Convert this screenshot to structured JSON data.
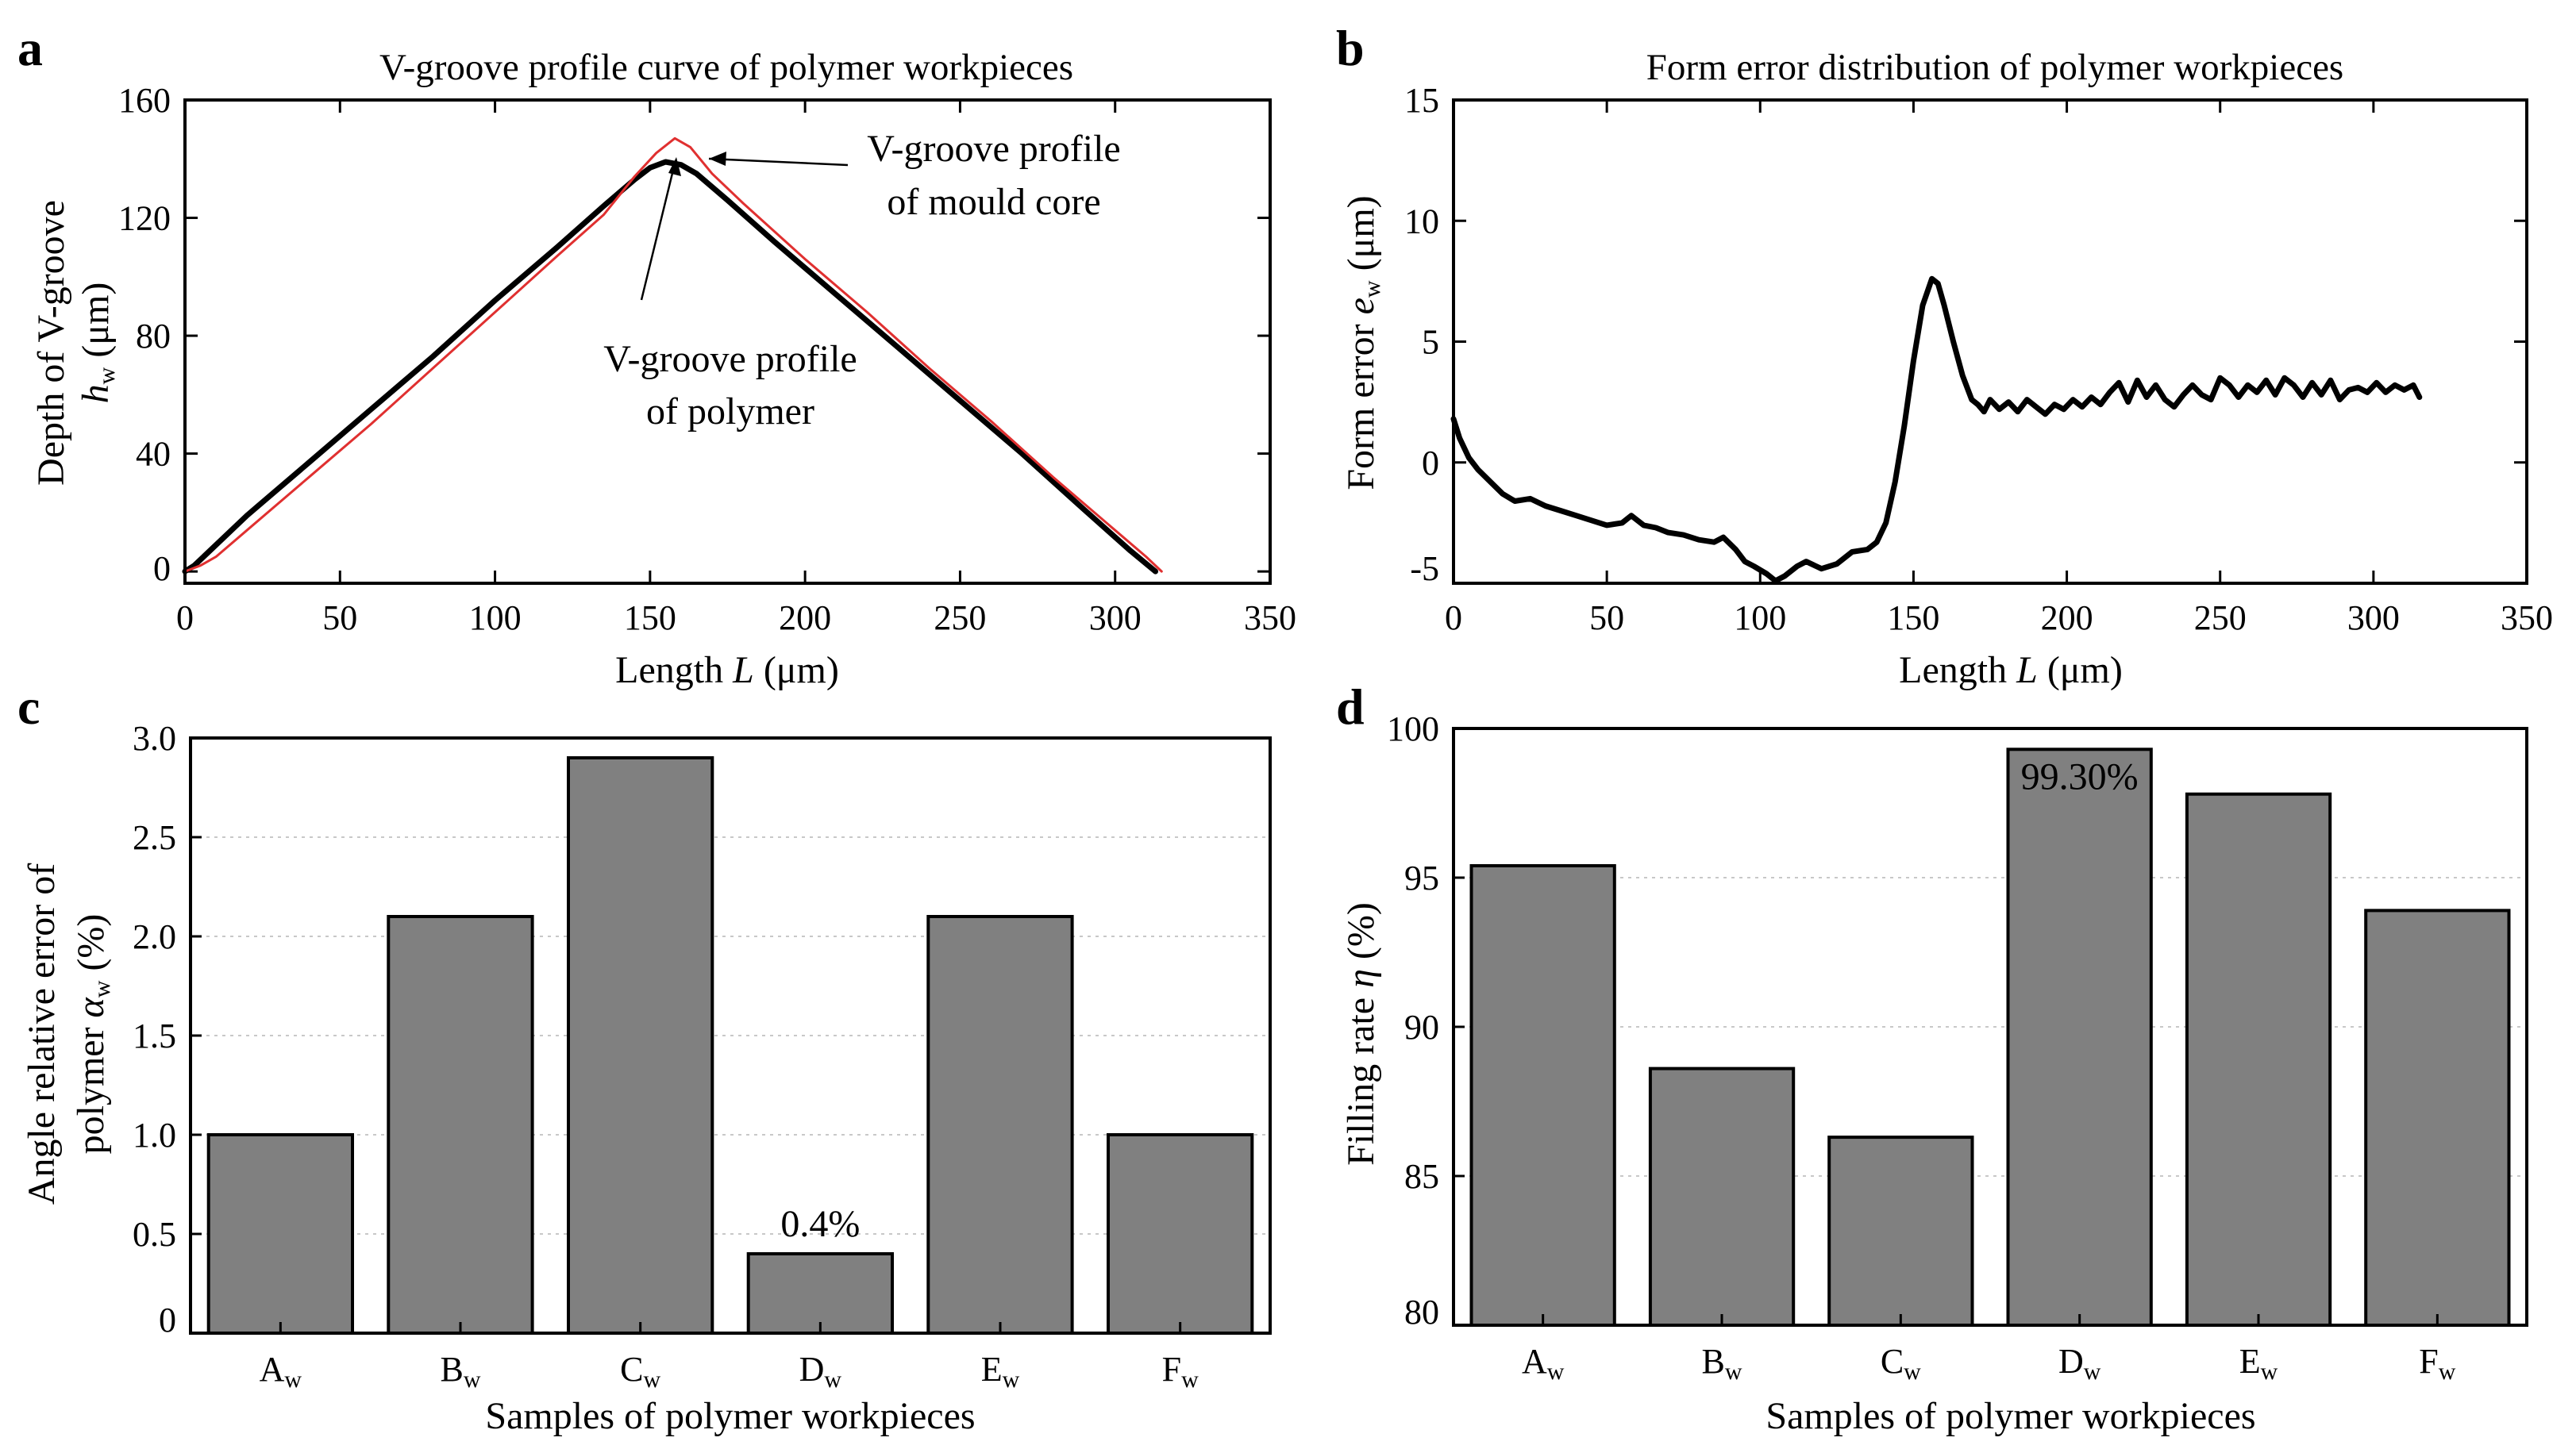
{
  "chart_data": [
    {
      "panel": "a",
      "type": "line",
      "title": "V-groove profile curve of polymer workpieces",
      "xlabel_main": "Length ",
      "xlabel_var": "L",
      "xlabel_unit": " (μm)",
      "ylabel_line1": "Depth of V-groove",
      "ylabel_var": "h",
      "ylabel_sub": "w",
      "ylabel_unit": " (μm)",
      "xlim": [
        0,
        350
      ],
      "ylim": [
        -4,
        160
      ],
      "xticks": [
        "0",
        "50",
        "100",
        "150",
        "200",
        "250",
        "300",
        "350"
      ],
      "yticks": [
        "0",
        "40",
        "80",
        "120",
        "160"
      ],
      "annotations": {
        "mould_line1": "V-groove profile",
        "mould_line2": "of mould core",
        "polymer_line1": "V-groove profile",
        "polymer_line2": "of polymer"
      },
      "series": [
        {
          "name": "V-groove profile of polymer",
          "color": "#000000",
          "x": [
            0,
            3,
            10,
            20,
            40,
            60,
            80,
            100,
            120,
            135,
            145,
            150,
            155,
            160,
            165,
            175,
            190,
            210,
            230,
            250,
            270,
            290,
            305,
            313
          ],
          "y": [
            0,
            2,
            9,
            19,
            37,
            55,
            73,
            92,
            110,
            124,
            133,
            137,
            139,
            138,
            135,
            126,
            112,
            94,
            76,
            58,
            40,
            21,
            7,
            0
          ]
        },
        {
          "name": "V-groove profile of mould core",
          "color": "#e03030",
          "x": [
            0,
            5,
            10,
            20,
            40,
            60,
            80,
            100,
            120,
            135,
            145,
            152,
            158,
            163,
            170,
            180,
            200,
            220,
            240,
            260,
            280,
            300,
            310,
            315
          ],
          "y": [
            0,
            2,
            5,
            14,
            32,
            50,
            69,
            88,
            107,
            121,
            134,
            142,
            147,
            144,
            135,
            125,
            106,
            88,
            69,
            51,
            32,
            14,
            5,
            0
          ]
        }
      ]
    },
    {
      "panel": "b",
      "type": "line",
      "title": "Form error distribution of polymer workpieces",
      "xlabel_main": "Length ",
      "xlabel_var": "L",
      "xlabel_unit": " (μm)",
      "ylabel_main": "Form error ",
      "ylabel_var": "e",
      "ylabel_sub": "w",
      "ylabel_unit": " (μm)",
      "xlim": [
        0,
        350
      ],
      "ylim": [
        -5,
        15
      ],
      "xticks": [
        "0",
        "50",
        "100",
        "150",
        "200",
        "250",
        "300",
        "350"
      ],
      "yticks": [
        "-5",
        "0",
        "5",
        "10",
        "15"
      ],
      "series": [
        {
          "name": "Form error",
          "color": "#000000",
          "x": [
            0,
            2,
            5,
            8,
            12,
            16,
            20,
            25,
            30,
            35,
            40,
            45,
            50,
            55,
            58,
            62,
            66,
            70,
            75,
            80,
            85,
            88,
            92,
            95,
            98,
            102,
            105,
            108,
            112,
            115,
            120,
            125,
            130,
            135,
            138,
            141,
            144,
            147,
            150,
            153,
            156,
            158,
            160,
            163,
            166,
            169,
            171,
            173,
            175,
            178,
            181,
            184,
            187,
            190,
            193,
            196,
            199,
            202,
            205,
            208,
            211,
            214,
            217,
            220,
            223,
            226,
            229,
            232,
            235,
            238,
            241,
            244,
            247,
            250,
            253,
            256,
            259,
            262,
            265,
            268,
            271,
            274,
            277,
            280,
            283,
            286,
            289,
            292,
            295,
            298,
            301,
            304,
            307,
            310,
            313,
            315
          ],
          "y": [
            1.8,
            1.0,
            0.2,
            -0.3,
            -0.8,
            -1.3,
            -1.6,
            -1.5,
            -1.8,
            -2.0,
            -2.2,
            -2.4,
            -2.6,
            -2.5,
            -2.2,
            -2.6,
            -2.7,
            -2.9,
            -3.0,
            -3.2,
            -3.3,
            -3.1,
            -3.6,
            -4.1,
            -4.3,
            -4.6,
            -4.9,
            -4.7,
            -4.3,
            -4.1,
            -4.4,
            -4.2,
            -3.7,
            -3.6,
            -3.3,
            -2.5,
            -0.8,
            1.5,
            4.2,
            6.5,
            7.6,
            7.4,
            6.5,
            5.0,
            3.6,
            2.6,
            2.4,
            2.1,
            2.6,
            2.2,
            2.5,
            2.1,
            2.6,
            2.3,
            2.0,
            2.4,
            2.2,
            2.6,
            2.3,
            2.7,
            2.4,
            2.9,
            3.3,
            2.5,
            3.4,
            2.7,
            3.2,
            2.6,
            2.3,
            2.8,
            3.2,
            2.8,
            2.6,
            3.5,
            3.2,
            2.7,
            3.2,
            2.9,
            3.4,
            2.8,
            3.5,
            3.2,
            2.7,
            3.3,
            2.8,
            3.4,
            2.6,
            3.0,
            3.1,
            2.9,
            3.3,
            2.9,
            3.2,
            3.0,
            3.2,
            2.7
          ]
        }
      ]
    },
    {
      "panel": "c",
      "type": "bar",
      "xlabel": "Samples of polymer workpieces",
      "ylabel_line1": "Angle relative error of",
      "ylabel_main": "polymer ",
      "ylabel_var": "α",
      "ylabel_sub": "w",
      "ylabel_unit": " (%)",
      "ylim": [
        0,
        3
      ],
      "yticks": [
        "0",
        "0.5",
        "1.0",
        "1.5",
        "2.0",
        "2.5",
        "3.0"
      ],
      "categories": [
        "A",
        "B",
        "C",
        "D",
        "E",
        "F"
      ],
      "category_sub": "w",
      "values": [
        1.0,
        2.1,
        2.9,
        0.4,
        2.1,
        1.0
      ],
      "data_label": "0.4%",
      "data_label_index": 3
    },
    {
      "panel": "d",
      "type": "bar",
      "xlabel": "Samples of polymer workpieces",
      "ylabel_main": "Filling rate ",
      "ylabel_var": "η",
      "ylabel_unit": " (%)",
      "ylim": [
        80,
        100
      ],
      "yticks": [
        "80",
        "85",
        "90",
        "95",
        "100"
      ],
      "categories": [
        "A",
        "B",
        "C",
        "D",
        "E",
        "F"
      ],
      "category_sub": "w",
      "values": [
        95.4,
        88.6,
        86.3,
        99.3,
        97.8,
        93.9
      ],
      "data_label": "99.30%",
      "data_label_index": 3
    }
  ]
}
